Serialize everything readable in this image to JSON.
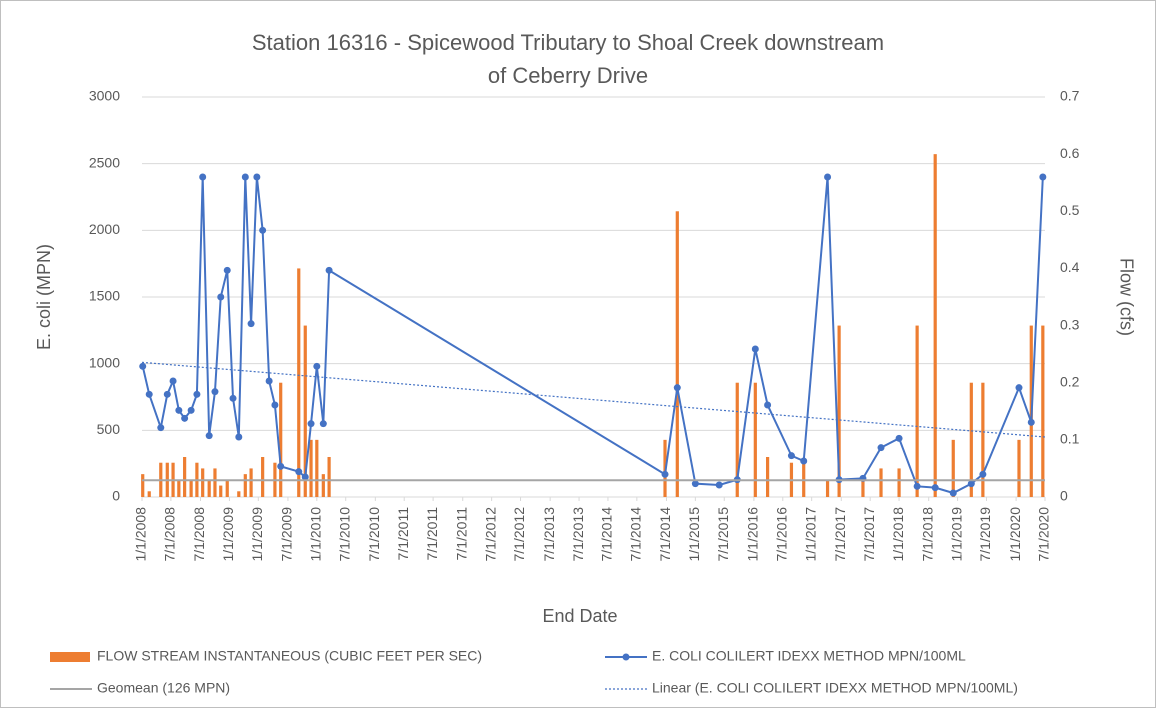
{
  "chart_data": {
    "type": "combo",
    "title": [
      "Station 16316 - Spicewood Tributary to Shoal Creek downstream",
      "of Ceberry Drive"
    ],
    "x_label": "End Date",
    "y_label": "E. coli (MPN)",
    "y2_label": "Flow (cfs)",
    "xlim": [
      2008,
      2020.5
    ],
    "xticks": [
      {
        "value": 2008,
        "label": "1/1/2008"
      },
      {
        "value": 2008.4,
        "label": "7/1/2008"
      },
      {
        "value": 2008.81,
        "label": "7/1/2008"
      },
      {
        "value": 2009.21,
        "label": "1/1/2009"
      },
      {
        "value": 2009.61,
        "label": "1/1/2009"
      },
      {
        "value": 2010.02,
        "label": "7/1/2009"
      },
      {
        "value": 2010.42,
        "label": "1/1/2010"
      },
      {
        "value": 2010.82,
        "label": "7/1/2010"
      },
      {
        "value": 2011.23,
        "label": "7/1/2010"
      },
      {
        "value": 2011.63,
        "label": "7/1/2011"
      },
      {
        "value": 2012.03,
        "label": "7/1/2011"
      },
      {
        "value": 2012.44,
        "label": "7/1/2011"
      },
      {
        "value": 2012.84,
        "label": "7/1/2012"
      },
      {
        "value": 2013.24,
        "label": "7/1/2012"
      },
      {
        "value": 2013.65,
        "label": "7/1/2013"
      },
      {
        "value": 2014.05,
        "label": "7/1/2013"
      },
      {
        "value": 2014.45,
        "label": "7/1/2014"
      },
      {
        "value": 2014.85,
        "label": "7/1/2014"
      },
      {
        "value": 2015.26,
        "label": "7/1/2014"
      },
      {
        "value": 2015.66,
        "label": "1/1/2015"
      },
      {
        "value": 2016.06,
        "label": "7/1/2015"
      },
      {
        "value": 2016.47,
        "label": "1/1/2016"
      },
      {
        "value": 2016.87,
        "label": "7/1/2016"
      },
      {
        "value": 2017.27,
        "label": "1/1/2017"
      },
      {
        "value": 2017.68,
        "label": "7/1/2017"
      },
      {
        "value": 2018.08,
        "label": "7/1/2017"
      },
      {
        "value": 2018.48,
        "label": "1/1/2018"
      },
      {
        "value": 2018.89,
        "label": "7/1/2018"
      },
      {
        "value": 2019.29,
        "label": "1/1/2019"
      },
      {
        "value": 2019.69,
        "label": "7/1/2019"
      },
      {
        "value": 2020.1,
        "label": "1/1/2020"
      },
      {
        "value": 2020.5,
        "label": "7/1/2020"
      }
    ],
    "ylim": [
      0,
      3000
    ],
    "yticks": [
      0,
      500,
      1000,
      1500,
      2000,
      2500,
      3000
    ],
    "y2lim": [
      0,
      0.7
    ],
    "y2ticks": [
      0,
      0.1,
      0.2,
      0.3,
      0.4,
      0.5,
      0.6,
      0.7
    ],
    "grid": true,
    "legend": "bottom",
    "series": [
      {
        "name": "FLOW STREAM INSTANTANEOUS (CUBIC FEET PER SEC)",
        "type": "bar",
        "axis": "y2",
        "color": "#ed7d31",
        "x": [
          2008.01,
          2008.1,
          2008.26,
          2008.35,
          2008.43,
          2008.51,
          2008.59,
          2008.68,
          2008.76,
          2008.84,
          2008.93,
          2009.01,
          2009.09,
          2009.18,
          2009.34,
          2009.43,
          2009.51,
          2009.67,
          2009.84,
          2009.92,
          2010.17,
          2010.26,
          2010.34,
          2010.42,
          2010.51,
          2010.59,
          2015.24,
          2015.41,
          2016.24,
          2016.49,
          2016.66,
          2016.99,
          2017.16,
          2017.49,
          2017.65,
          2017.98,
          2018.23,
          2018.48,
          2018.73,
          2018.98,
          2019.23,
          2019.48,
          2019.64,
          2020.14,
          2020.31,
          2020.47
        ],
        "values": [
          0.04,
          0.01,
          0.06,
          0.06,
          0.06,
          0.03,
          0.07,
          0.03,
          0.06,
          0.05,
          0.03,
          0.05,
          0.02,
          0.03,
          0.01,
          0.04,
          0.05,
          0.07,
          0.06,
          0.2,
          0.4,
          0.3,
          0.1,
          0.1,
          0.04,
          0.07,
          0.1,
          0.5,
          0.2,
          0.2,
          0.07,
          0.06,
          0.06,
          0.03,
          0.3,
          0.03,
          0.05,
          0.05,
          0.3,
          0.6,
          0.1,
          0.2,
          0.2,
          0.1,
          0.3,
          0.3
        ]
      },
      {
        "name": "E. COLI COLILERT IDEXX METHOD MPN/100ML",
        "type": "line",
        "marker": true,
        "color": "#4472c4",
        "x": [
          2008.01,
          2008.1,
          2008.26,
          2008.35,
          2008.43,
          2008.51,
          2008.59,
          2008.68,
          2008.76,
          2008.84,
          2008.93,
          2009.01,
          2009.09,
          2009.18,
          2009.26,
          2009.34,
          2009.43,
          2009.51,
          2009.59,
          2009.67,
          2009.76,
          2009.84,
          2009.92,
          2010.17,
          2010.26,
          2010.34,
          2010.42,
          2010.51,
          2010.59,
          2015.24,
          2015.41,
          2015.66,
          2015.99,
          2016.24,
          2016.49,
          2016.66,
          2016.99,
          2017.16,
          2017.49,
          2017.65,
          2017.98,
          2018.23,
          2018.48,
          2018.73,
          2018.98,
          2019.23,
          2019.48,
          2019.64,
          2020.14,
          2020.31,
          2020.47
        ],
        "values": [
          980,
          770,
          520,
          770,
          870,
          650,
          590,
          650,
          770,
          2400,
          460,
          790,
          1500,
          1700,
          740,
          450,
          2400,
          1300,
          2400,
          2000,
          870,
          690,
          230,
          190,
          150,
          550,
          980,
          550,
          1700,
          170,
          820,
          100,
          90,
          130,
          1110,
          690,
          310,
          270,
          2400,
          130,
          140,
          370,
          440,
          80,
          70,
          30,
          100,
          170,
          820,
          560,
          2400
        ]
      },
      {
        "name": "Geomean (126 MPN)",
        "type": "line",
        "color": "#a5a5a5",
        "x": [
          2008,
          2020.5
        ],
        "values": [
          126,
          126
        ]
      },
      {
        "name": "Linear (E. COLI COLILERT IDEXX METHOD MPN/100ML)",
        "type": "line",
        "dash": "dotted",
        "color": "#4472c4",
        "x": [
          2008,
          2020.5
        ],
        "values": [
          1010,
          450
        ]
      }
    ]
  }
}
